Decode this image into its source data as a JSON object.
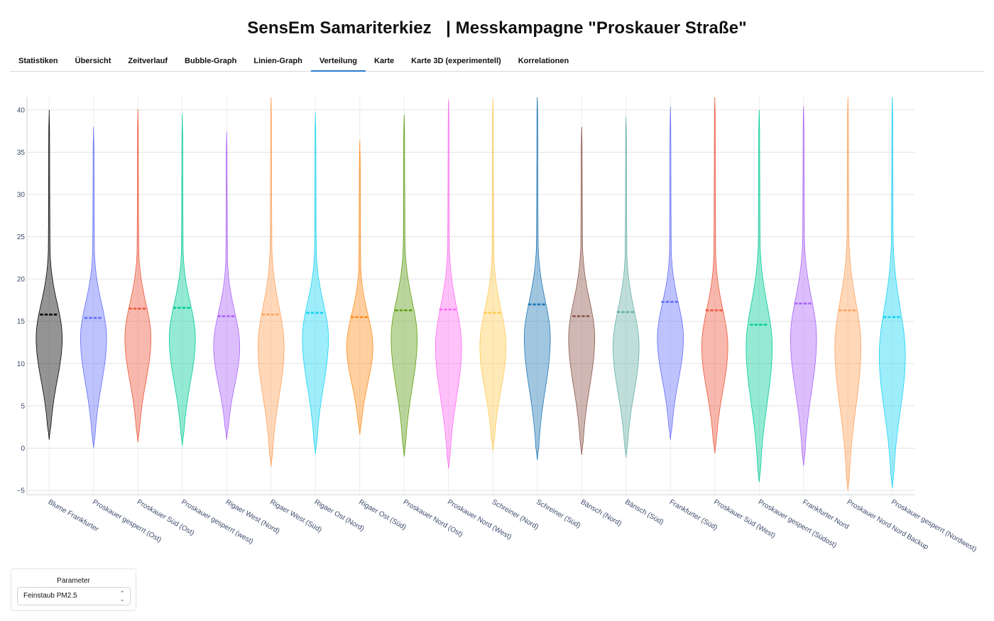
{
  "header": {
    "title": "SensEm Samariterkiez   | Messkampagne \"Proskauer Straße\""
  },
  "tabs": [
    {
      "label": "Statistiken"
    },
    {
      "label": "Übersicht"
    },
    {
      "label": "Zeitverlauf"
    },
    {
      "label": "Bubble-Graph"
    },
    {
      "label": "Linien-Graph"
    },
    {
      "label": "Verteilung",
      "active": true
    },
    {
      "label": "Karte"
    },
    {
      "label": "Karte 3D (experimentell)"
    },
    {
      "label": "Korrelationen"
    }
  ],
  "parameter": {
    "label": "Parameter",
    "selected": "Feinstaub PM2.5"
  },
  "chart_data": {
    "type": "violin",
    "ylim": [
      -5.5,
      41.5
    ],
    "yticks": [
      -5,
      0,
      5,
      10,
      15,
      20,
      25,
      30,
      35,
      40
    ],
    "grid": true,
    "series": [
      {
        "name": "Blume Frankfurter",
        "color": "#000000",
        "min": 1.0,
        "max": 40.0,
        "median": 15.8,
        "mode": 13,
        "spread": 7.5
      },
      {
        "name": "Proskauer gesperrt (Ost)",
        "color": "#636efa",
        "min": 0.0,
        "max": 38.0,
        "median": 15.4,
        "mode": 13,
        "spread": 7.5
      },
      {
        "name": "Proskauer Süd (Ost)",
        "color": "#ef553b",
        "min": 0.7,
        "max": 40.1,
        "median": 16.5,
        "mode": 13,
        "spread": 7.5
      },
      {
        "name": "Proskauer gesperrt (west)",
        "color": "#00cc96",
        "min": 0.3,
        "max": 39.5,
        "median": 16.6,
        "mode": 13,
        "spread": 7.5
      },
      {
        "name": "Rigaer West (Nord)",
        "color": "#ab63fa",
        "min": 1.0,
        "max": 37.4,
        "median": 15.6,
        "mode": 12,
        "spread": 7.5
      },
      {
        "name": "Rigaer West (Süd)",
        "color": "#ffa15a",
        "min": -2.2,
        "max": 41.5,
        "median": 15.8,
        "mode": 12,
        "spread": 8.5
      },
      {
        "name": "Rigaer Ost (Nord)",
        "color": "#19d3f3",
        "min": -0.7,
        "max": 39.7,
        "median": 16.0,
        "mode": 13,
        "spread": 7.5
      },
      {
        "name": "Rigaer Ost (Süd)",
        "color": "#ff8c1a",
        "min": 1.6,
        "max": 36.4,
        "median": 15.5,
        "mode": 12,
        "spread": 7.0
      },
      {
        "name": "Proskauer Nord (Ost)",
        "color": "#5e9e12",
        "min": -1.0,
        "max": 39.4,
        "median": 16.3,
        "mode": 13,
        "spread": 8.0
      },
      {
        "name": "Proskauer Nord (West)",
        "color": "#ff6bf0",
        "min": -2.4,
        "max": 41.2,
        "median": 16.4,
        "mode": 12,
        "spread": 8.5
      },
      {
        "name": "Schreiner (Nord)",
        "color": "#fecb52",
        "min": -0.3,
        "max": 41.4,
        "median": 16.0,
        "mode": 12,
        "spread": 8.0
      },
      {
        "name": "Schreiner (Süd)",
        "color": "#1f77b4",
        "min": -1.4,
        "max": 41.5,
        "median": 17.0,
        "mode": 13,
        "spread": 8.0
      },
      {
        "name": "Bänsch (Nord)",
        "color": "#8c564b",
        "min": -0.8,
        "max": 38.0,
        "median": 15.6,
        "mode": 13,
        "spread": 8.0
      },
      {
        "name": "Bänsch (Süd)",
        "color": "#67b1a8",
        "min": -1.1,
        "max": 39.2,
        "median": 16.1,
        "mode": 12,
        "spread": 8.0
      },
      {
        "name": "Frankfurter (Süd)",
        "color": "#636efa",
        "min": 1.0,
        "max": 40.4,
        "median": 17.3,
        "mode": 13,
        "spread": 7.5
      },
      {
        "name": "Proskauer Süd (West)",
        "color": "#ef553b",
        "min": -0.6,
        "max": 41.5,
        "median": 16.3,
        "mode": 12,
        "spread": 8.0
      },
      {
        "name": "Proskauer gesperrt (Südost)",
        "color": "#00cc96",
        "min": -4.0,
        "max": 40.0,
        "median": 14.6,
        "mode": 12,
        "spread": 9.0
      },
      {
        "name": "Frankfurter Nord",
        "color": "#ab63fa",
        "min": -2.1,
        "max": 40.4,
        "median": 17.1,
        "mode": 13,
        "spread": 8.5
      },
      {
        "name": "Proskauer Nord Nord Backup",
        "color": "#ffa15a",
        "min": -5.0,
        "max": 41.5,
        "median": 16.3,
        "mode": 12,
        "spread": 9.5
      },
      {
        "name": "Proskauer gesperrt (Nordwest)",
        "color": "#19d3f3",
        "min": -4.7,
        "max": 41.5,
        "median": 15.5,
        "mode": 11,
        "spread": 10.0
      }
    ]
  }
}
